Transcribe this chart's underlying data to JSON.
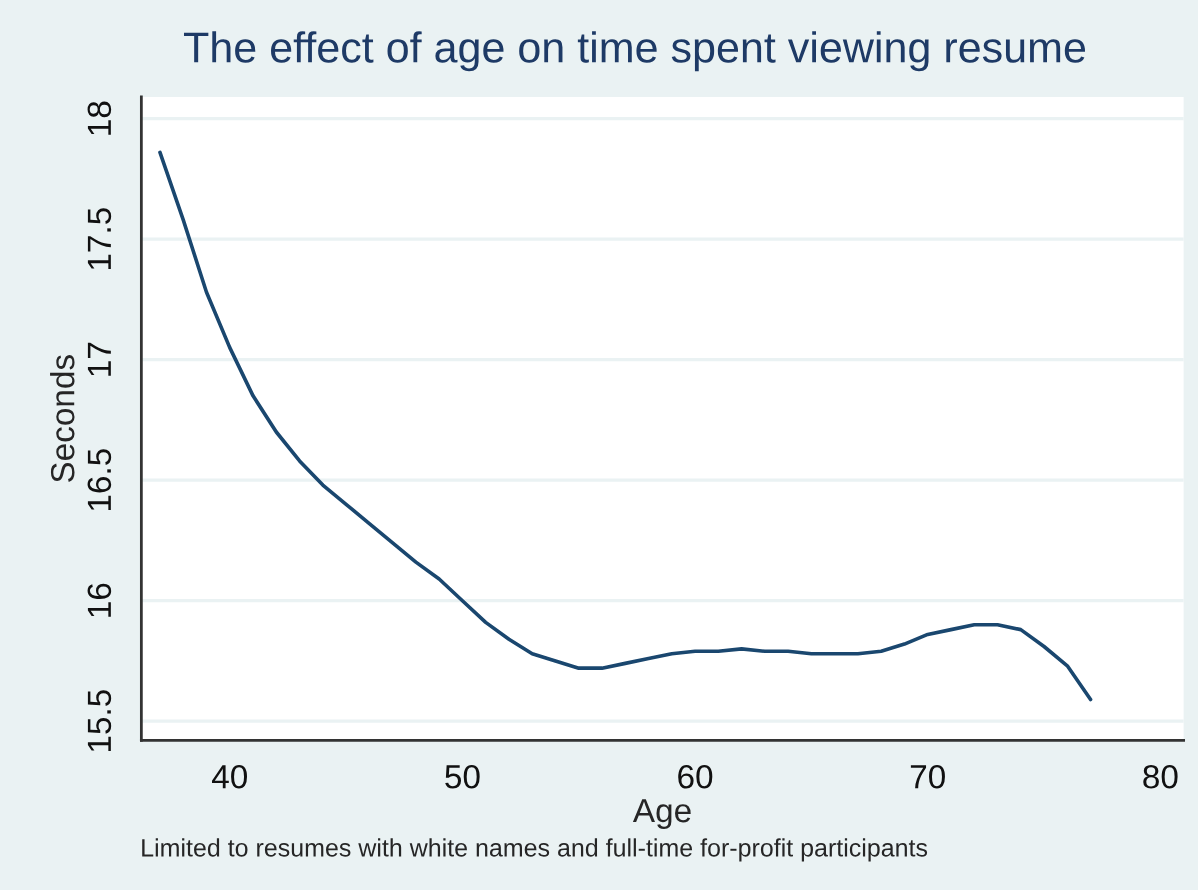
{
  "chart_data": {
    "type": "line",
    "title": "The effect of age on time spent viewing resume",
    "xlabel": "Age",
    "ylabel": "Seconds",
    "annotations": [
      "Limited to resumes with white names and full-time for-profit participants"
    ],
    "x": [
      37,
      38,
      39,
      40,
      41,
      42,
      43,
      44,
      45,
      46,
      47,
      48,
      49,
      50,
      51,
      52,
      53,
      54,
      55,
      56,
      57,
      58,
      59,
      60,
      61,
      62,
      63,
      64,
      65,
      66,
      67,
      68,
      69,
      70,
      71,
      72,
      73,
      74,
      75,
      76,
      77
    ],
    "series": [
      {
        "color": "#1a476f",
        "values": [
          17.86,
          17.58,
          17.28,
          17.05,
          16.85,
          16.7,
          16.58,
          16.48,
          16.4,
          16.32,
          16.24,
          16.16,
          16.09,
          16.0,
          15.91,
          15.84,
          15.78,
          15.75,
          15.72,
          15.72,
          15.74,
          15.76,
          15.78,
          15.79,
          15.79,
          15.8,
          15.79,
          15.79,
          15.78,
          15.78,
          15.78,
          15.79,
          15.82,
          15.86,
          15.88,
          15.9,
          15.9,
          15.88,
          15.81,
          15.73,
          15.59
        ]
      }
    ],
    "xlim": [
      36.2,
      81
    ],
    "xticks": [
      40,
      50,
      60,
      70,
      80
    ],
    "ylim": [
      15.42,
      18.09
    ],
    "yticks": [
      15.5,
      16,
      16.5,
      17,
      17.5,
      18
    ],
    "grid": "y",
    "legend": false,
    "marker": "none",
    "line_style": "solid"
  }
}
